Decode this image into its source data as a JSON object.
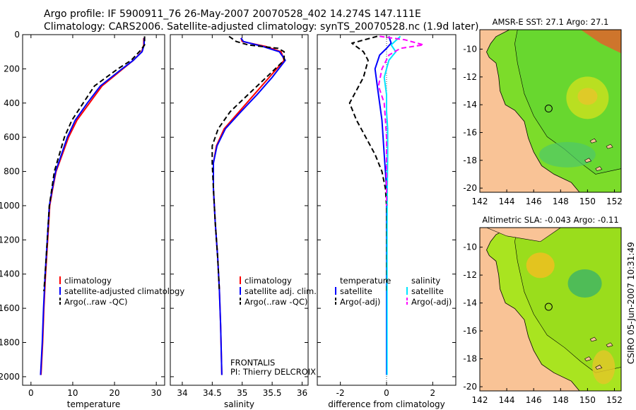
{
  "header": {
    "line1": "Argo profile: IF 5900911_76 26-May-2007 20070528_402 14.274S 147.111E",
    "line2": "Climatology: CARS2006. Satellite-adjusted climatology: synTS_20070528.nc (1.9d later)"
  },
  "stamp": "CSIRO 05-Jun-2007 10:31:49",
  "colors": {
    "climatology": "#ff0000",
    "satellite": "#0000ff",
    "argo": "#000000",
    "satellite_diff": "#00e5ff",
    "argo_sal_diff": "#ff00ff",
    "land": "#f9c396"
  },
  "chart_data": [
    {
      "type": "line",
      "name": "temperature-panel",
      "xlabel": "temperature",
      "ylabel": "",
      "xlim": [
        -2,
        32
      ],
      "ylim": [
        2050,
        0
      ],
      "xticks": [
        0,
        10,
        20,
        30
      ],
      "xtick_labels": [
        "0",
        "10",
        "20",
        "30"
      ],
      "yticks": [
        0,
        200,
        400,
        600,
        800,
        1000,
        1200,
        1400,
        1600,
        1800,
        2000
      ],
      "ytick_labels": [
        "0",
        "200",
        "400",
        "600",
        "800",
        "1000",
        "1200",
        "1400",
        "1600",
        "1800",
        "2000"
      ],
      "legend": {
        "position": "bottom-right",
        "entries": [
          "climatology",
          "satellite-adjusted climatology",
          "Argo(..raw -QC)"
        ]
      },
      "series": [
        {
          "name": "climatology",
          "style": "solid",
          "color": "#ff0000",
          "points": [
            [
              27.0,
              20
            ],
            [
              27.0,
              60
            ],
            [
              26.5,
              100
            ],
            [
              24.5,
              150
            ],
            [
              22,
              200
            ],
            [
              19.5,
              250
            ],
            [
              17,
              300
            ],
            [
              14,
              400
            ],
            [
              11,
              500
            ],
            [
              9,
              600
            ],
            [
              7.5,
              700
            ],
            [
              6,
              800
            ],
            [
              5.2,
              900
            ],
            [
              4.5,
              1000
            ],
            [
              4,
              1200
            ],
            [
              3.5,
              1400
            ],
            [
              3.1,
              1600
            ],
            [
              2.8,
              1800
            ],
            [
              2.4,
              1990
            ]
          ]
        },
        {
          "name": "satellite-adjusted climatology",
          "style": "solid",
          "color": "#0000ff",
          "points": [
            [
              27.1,
              20
            ],
            [
              27.1,
              60
            ],
            [
              26.6,
              100
            ],
            [
              24.5,
              150
            ],
            [
              21.8,
              200
            ],
            [
              19.2,
              250
            ],
            [
              16.6,
              300
            ],
            [
              13.5,
              400
            ],
            [
              10.6,
              500
            ],
            [
              8.7,
              600
            ],
            [
              7.3,
              700
            ],
            [
              5.9,
              800
            ],
            [
              5.1,
              900
            ],
            [
              4.4,
              1000
            ],
            [
              3.9,
              1200
            ],
            [
              3.4,
              1400
            ],
            [
              3.0,
              1600
            ],
            [
              2.7,
              1800
            ],
            [
              2.3,
              1990
            ]
          ]
        },
        {
          "name": "Argo(..raw -QC)",
          "style": "dashed",
          "color": "#000000",
          "points": [
            [
              27.2,
              10
            ],
            [
              27.2,
              60
            ],
            [
              26.3,
              90
            ],
            [
              24,
              150
            ],
            [
              20.8,
              200
            ],
            [
              18,
              250
            ],
            [
              15.2,
              300
            ],
            [
              12.5,
              400
            ],
            [
              9.8,
              500
            ],
            [
              8,
              600
            ],
            [
              6.8,
              700
            ],
            [
              5.6,
              800
            ],
            [
              5,
              900
            ],
            [
              4.4,
              1000
            ],
            [
              3.9,
              1200
            ],
            [
              3.4,
              1400
            ],
            [
              3.1,
              1500
            ]
          ]
        }
      ]
    },
    {
      "type": "line",
      "name": "salinity-panel",
      "xlabel": "salinity",
      "ylabel": "",
      "xlim": [
        33.8,
        36.1
      ],
      "ylim": [
        2050,
        0
      ],
      "xticks": [
        34,
        34.5,
        35,
        35.5,
        36
      ],
      "xtick_labels": [
        "34",
        "34.5",
        "35",
        "35.5",
        "36"
      ],
      "legend": {
        "position": "bottom-right",
        "entries": [
          "climatology",
          "satellite adj. clim.",
          "Argo(..raw -QC)"
        ]
      },
      "annotation": {
        "line1": "FRONTALIS",
        "line2": "PI: Thierry DELCROIX"
      },
      "series": [
        {
          "name": "climatology",
          "style": "solid",
          "color": "#ff0000",
          "points": [
            [
              34.98,
              20
            ],
            [
              35.0,
              40
            ],
            [
              35.4,
              70
            ],
            [
              35.65,
              100
            ],
            [
              35.7,
              150
            ],
            [
              35.45,
              250
            ],
            [
              35.2,
              350
            ],
            [
              34.95,
              450
            ],
            [
              34.7,
              550
            ],
            [
              34.57,
              650
            ],
            [
              34.52,
              750
            ],
            [
              34.52,
              900
            ],
            [
              34.55,
              1100
            ],
            [
              34.59,
              1300
            ],
            [
              34.62,
              1500
            ],
            [
              34.64,
              1700
            ],
            [
              34.66,
              1990
            ]
          ]
        },
        {
          "name": "satellite adj. clim.",
          "style": "solid",
          "color": "#0000ff",
          "points": [
            [
              34.98,
              20
            ],
            [
              35.02,
              40
            ],
            [
              35.35,
              70
            ],
            [
              35.62,
              100
            ],
            [
              35.72,
              150
            ],
            [
              35.5,
              250
            ],
            [
              35.25,
              350
            ],
            [
              34.98,
              450
            ],
            [
              34.72,
              550
            ],
            [
              34.58,
              650
            ],
            [
              34.52,
              750
            ],
            [
              34.52,
              900
            ],
            [
              34.55,
              1100
            ],
            [
              34.59,
              1300
            ],
            [
              34.62,
              1500
            ],
            [
              34.64,
              1700
            ],
            [
              34.66,
              1990
            ]
          ]
        },
        {
          "name": "Argo(..raw -QC)",
          "style": "dashed",
          "color": "#000000",
          "points": [
            [
              34.78,
              10
            ],
            [
              34.9,
              40
            ],
            [
              35.1,
              60
            ],
            [
              35.6,
              80
            ],
            [
              35.7,
              100
            ],
            [
              35.7,
              150
            ],
            [
              35.4,
              250
            ],
            [
              35.1,
              350
            ],
            [
              34.8,
              450
            ],
            [
              34.6,
              550
            ],
            [
              34.5,
              650
            ],
            [
              34.5,
              750
            ],
            [
              34.52,
              900
            ],
            [
              34.55,
              1100
            ],
            [
              34.59,
              1300
            ],
            [
              34.62,
              1500
            ]
          ]
        }
      ]
    },
    {
      "type": "line",
      "name": "difference-panel",
      "xlabel": "difference from climatology",
      "ylabel": "",
      "xlim": [
        -3,
        3
      ],
      "ylim": [
        2050,
        0
      ],
      "xticks": [
        -2,
        0,
        2
      ],
      "xtick_labels": [
        "-2",
        "0",
        "2"
      ],
      "legend": {
        "position": "bottom-right",
        "entries": [
          "temperature",
          "satellite",
          "Argo(-adj)",
          "salinity",
          "satellite",
          "Argo(-adj)"
        ]
      },
      "series": [
        {
          "name": "temperature satellite",
          "style": "solid",
          "color": "#0000ff",
          "points": [
            [
              0.1,
              10
            ],
            [
              0.2,
              50
            ],
            [
              0.0,
              80
            ],
            [
              -0.3,
              120
            ],
            [
              -0.5,
              200
            ],
            [
              -0.4,
              300
            ],
            [
              -0.3,
              400
            ],
            [
              -0.2,
              500
            ],
            [
              -0.15,
              600
            ],
            [
              -0.1,
              700
            ],
            [
              -0.05,
              800
            ],
            [
              0.0,
              900
            ],
            [
              0.0,
              1000
            ],
            [
              0.0,
              1990
            ]
          ]
        },
        {
          "name": "temperature Argo(-adj)",
          "style": "dashed",
          "color": "#000000",
          "points": [
            [
              -0.4,
              10
            ],
            [
              -1.5,
              50
            ],
            [
              -1.0,
              100
            ],
            [
              -0.8,
              150
            ],
            [
              -1.0,
              250
            ],
            [
              -1.6,
              400
            ],
            [
              -1.3,
              500
            ],
            [
              -0.9,
              600
            ],
            [
              -0.5,
              700
            ],
            [
              -0.2,
              800
            ],
            [
              -0.05,
              900
            ],
            [
              0.0,
              1000
            ],
            [
              0.0,
              1500
            ]
          ]
        },
        {
          "name": "salinity satellite",
          "style": "solid",
          "color": "#00e5ff",
          "points": [
            [
              0.6,
              10
            ],
            [
              0.2,
              60
            ],
            [
              0.4,
              100
            ],
            [
              0.1,
              150
            ],
            [
              -0.1,
              250
            ],
            [
              0.0,
              350
            ],
            [
              0.0,
              450
            ],
            [
              0.05,
              550
            ],
            [
              0.05,
              700
            ],
            [
              0.03,
              900
            ],
            [
              0.02,
              1200
            ],
            [
              0.02,
              1600
            ],
            [
              0.02,
              1990
            ]
          ]
        },
        {
          "name": "salinity Argo(-adj)",
          "style": "dashed",
          "color": "#ff00ff",
          "points": [
            [
              -0.3,
              10
            ],
            [
              0.8,
              30
            ],
            [
              1.6,
              60
            ],
            [
              0.6,
              80
            ],
            [
              0.1,
              120
            ],
            [
              -0.2,
              200
            ],
            [
              -0.35,
              300
            ],
            [
              -0.1,
              400
            ],
            [
              -0.05,
              500
            ],
            [
              0.0,
              600
            ],
            [
              0.0,
              700
            ],
            [
              0.0,
              800
            ],
            [
              0.0,
              900
            ],
            [
              0.0,
              1000
            ]
          ]
        }
      ]
    },
    {
      "type": "heatmap",
      "name": "sst-map",
      "title": "AMSR-E SST: 27.1 Argo: 27.1",
      "xlim": [
        142,
        152.5
      ],
      "ylim": [
        -20.3,
        -8.6
      ],
      "xticks": [
        142,
        144,
        146,
        148,
        150,
        152
      ],
      "xtick_labels": [
        "142",
        "144",
        "146",
        "148",
        "150",
        "152"
      ],
      "yticks": [
        -10,
        -12,
        -14,
        -16,
        -18,
        -20
      ],
      "ytick_labels": [
        "-10",
        "-12",
        "-14",
        "-16",
        "-18",
        "-20"
      ],
      "marker": {
        "lon": 147.111,
        "lat": -14.274
      }
    },
    {
      "type": "heatmap",
      "name": "sla-map",
      "title": "Altimetric SLA: -0.043 Argo: -0.11",
      "xlim": [
        142,
        152.5
      ],
      "ylim": [
        -20.3,
        -8.6
      ],
      "xticks": [
        142,
        144,
        146,
        148,
        150,
        152
      ],
      "xtick_labels": [
        "142",
        "144",
        "146",
        "148",
        "150",
        "152"
      ],
      "yticks": [
        -10,
        -12,
        -14,
        -16,
        -18,
        -20
      ],
      "ytick_labels": [
        "-10",
        "-12",
        "-14",
        "-16",
        "-18",
        "-20"
      ],
      "marker": {
        "lon": 147.111,
        "lat": -14.274
      }
    }
  ]
}
